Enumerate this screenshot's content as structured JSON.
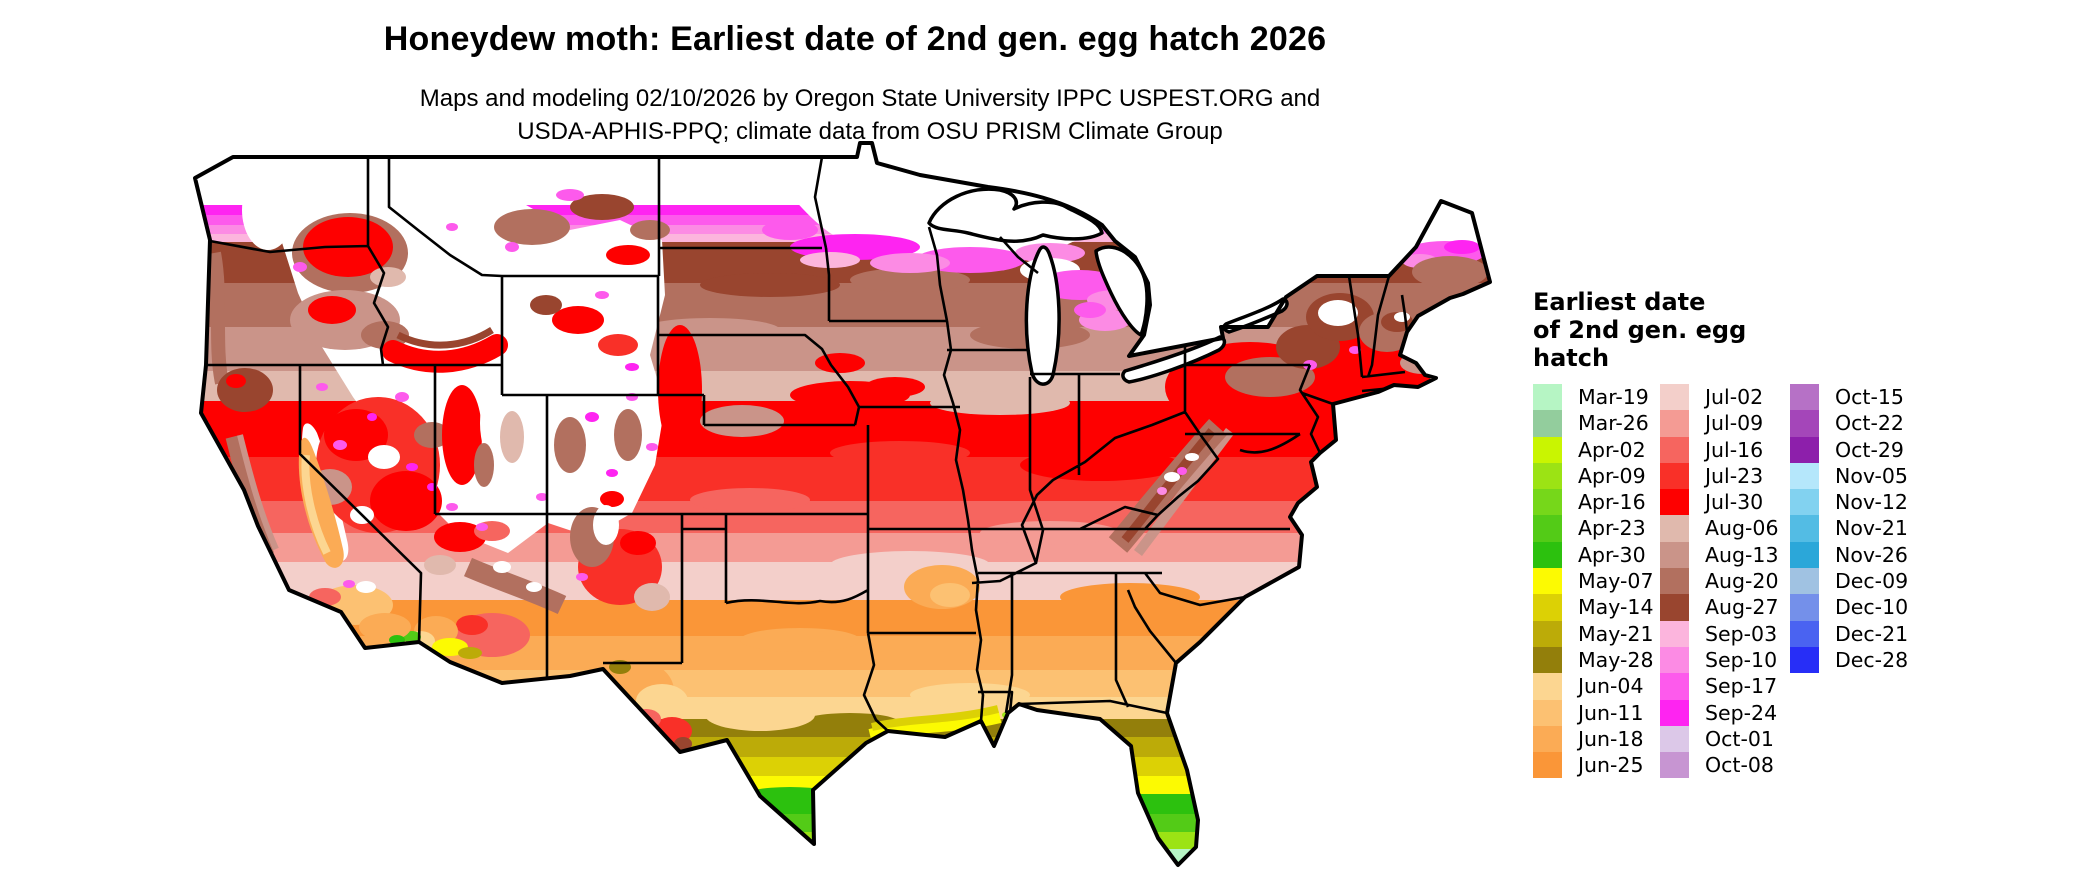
{
  "title": "Honeydew moth: Earliest date of 2nd gen. egg hatch 2026",
  "subtitle_line1": "Maps and modeling 02/10/2026 by Oregon State University IPPC USPEST.ORG and",
  "subtitle_line2": "USDA-APHIS-PPQ; climate data from OSU PRISM Climate Group",
  "colors": {
    "background": "#ffffff",
    "map_outline": "#000000",
    "no_data": "#ffffff"
  },
  "legend": {
    "title_lines": [
      "Earliest date",
      "of 2nd gen. egg",
      "hatch"
    ],
    "columns": [
      {
        "items": [
          {
            "label": "Mar-19",
            "color": "#b6f5c4"
          },
          {
            "label": "Mar-26",
            "color": "#93cd9d"
          },
          {
            "label": "Apr-02",
            "color": "#c9f501"
          },
          {
            "label": "Apr-09",
            "color": "#9ce314"
          },
          {
            "label": "Apr-16",
            "color": "#76d71a"
          },
          {
            "label": "Apr-23",
            "color": "#53cb17"
          },
          {
            "label": "Apr-30",
            "color": "#2cc10e"
          },
          {
            "label": "May-07",
            "color": "#fcfa02"
          },
          {
            "label": "May-14",
            "color": "#dcd105"
          },
          {
            "label": "May-21",
            "color": "#bcab08"
          },
          {
            "label": "May-28",
            "color": "#937f0b"
          },
          {
            "label": "Jun-04",
            "color": "#fcd691"
          },
          {
            "label": "Jun-11",
            "color": "#fcc172"
          },
          {
            "label": "Jun-18",
            "color": "#fbab55"
          },
          {
            "label": "Jun-25",
            "color": "#fa9638"
          }
        ]
      },
      {
        "items": [
          {
            "label": "Jul-02",
            "color": "#f3cfca"
          },
          {
            "label": "Jul-09",
            "color": "#f49b94"
          },
          {
            "label": "Jul-16",
            "color": "#f6655f"
          },
          {
            "label": "Jul-23",
            "color": "#f93028"
          },
          {
            "label": "Jul-30",
            "color": "#fe0000"
          },
          {
            "label": "Aug-06",
            "color": "#e0b9ad"
          },
          {
            "label": "Aug-13",
            "color": "#ca9489"
          },
          {
            "label": "Aug-20",
            "color": "#b2705f"
          },
          {
            "label": "Aug-27",
            "color": "#99452f"
          },
          {
            "label": "Sep-03",
            "color": "#fcb5dd"
          },
          {
            "label": "Sep-10",
            "color": "#fc8be4"
          },
          {
            "label": "Sep-17",
            "color": "#fd5aec"
          },
          {
            "label": "Sep-24",
            "color": "#fe24f1"
          },
          {
            "label": "Oct-01",
            "color": "#dcc8e8"
          },
          {
            "label": "Oct-08",
            "color": "#c795d2"
          }
        ]
      },
      {
        "items": [
          {
            "label": "Oct-15",
            "color": "#b671c6"
          },
          {
            "label": "Oct-22",
            "color": "#a446b9"
          },
          {
            "label": "Oct-29",
            "color": "#8d1fab"
          },
          {
            "label": "Nov-05",
            "color": "#b5e7fb"
          },
          {
            "label": "Nov-12",
            "color": "#82d2f0"
          },
          {
            "label": "Nov-21",
            "color": "#53bce4"
          },
          {
            "label": "Nov-26",
            "color": "#2ba7d9"
          },
          {
            "label": "Dec-09",
            "color": "#a0c2e2"
          },
          {
            "label": "Dec-10",
            "color": "#7490ea"
          },
          {
            "label": "Dec-21",
            "color": "#4a63f1"
          },
          {
            "label": "Dec-28",
            "color": "#272ef7"
          }
        ]
      }
    ]
  },
  "chart_data": {
    "type": "heatmap",
    "title": "Honeydew moth: Earliest date of 2nd gen. egg hatch 2026",
    "legend_title": "Earliest date of 2nd gen. egg hatch",
    "categories": [
      "Mar-19",
      "Mar-26",
      "Apr-02",
      "Apr-09",
      "Apr-16",
      "Apr-23",
      "Apr-30",
      "May-07",
      "May-14",
      "May-21",
      "May-28",
      "Jun-04",
      "Jun-11",
      "Jun-18",
      "Jun-25",
      "Jul-02",
      "Jul-09",
      "Jul-16",
      "Jul-23",
      "Jul-30",
      "Aug-06",
      "Aug-13",
      "Aug-20",
      "Aug-27",
      "Sep-03",
      "Sep-10",
      "Sep-17",
      "Sep-24",
      "Oct-01",
      "Oct-08",
      "Oct-15",
      "Oct-22",
      "Oct-29",
      "Nov-05",
      "Nov-12",
      "Nov-21",
      "Nov-26",
      "Dec-09",
      "Dec-10",
      "Dec-21",
      "Dec-28"
    ],
    "legend_position": "right",
    "region_pattern_notes": [
      "South Texas tip and south Florida hatch earliest (Apr greens, Mar mint at FL keys)",
      "Gulf coast band: May yellows/olives; central TX to GA: June oranges/peach",
      "Mid-latitudes OK/TN/VA southward: Jul-02 pale pink; Midwest/Ohio valley/NE corridor: mid-late July reds",
      "Northern plains, upper Midwest, northern New England: Aug browns then Sep pinks/magenta",
      "High Rockies, Cascades/Sierra, northern MN/ME: white = later/no 2nd gen. hatch"
    ]
  }
}
